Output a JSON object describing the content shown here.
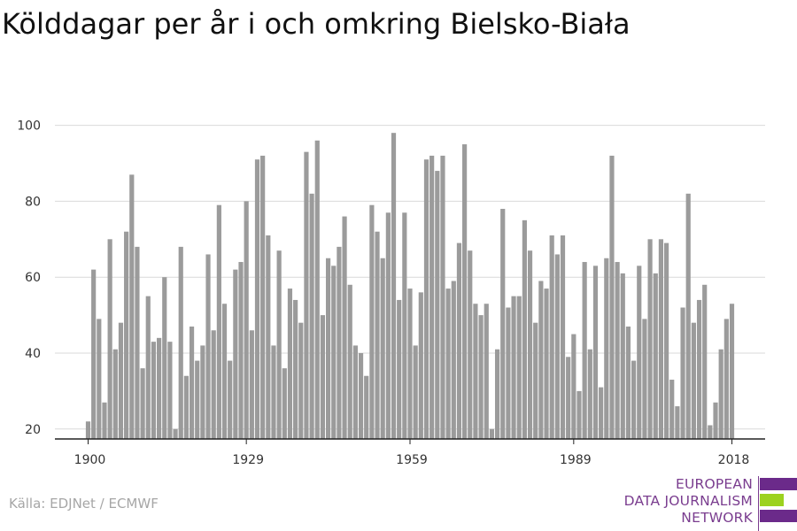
{
  "title": "Kölddagar per år i och omkring Bielsko-Biała",
  "source": "Källa: EDJNet / ECMWF",
  "logo": {
    "lines": [
      "EUROPEAN",
      "DATA JOURNALISM",
      "NETWORK"
    ],
    "colors": {
      "purple": "#6b2a8a",
      "green": "#9cd21f",
      "text": "#7a3d8f"
    }
  },
  "colors": {
    "bar": "#9b9b9b",
    "grid": "#d9d9d9",
    "axis": "#222222",
    "tick_label": "#333333"
  },
  "chart_data": {
    "type": "bar",
    "title": "Kölddagar per år i och omkring Bielsko-Biała",
    "xlabel": "",
    "ylabel": "",
    "x_range": [
      1900,
      2018
    ],
    "x_ticks": [
      1900,
      1929,
      1959,
      1989,
      2018
    ],
    "y_ticks": [
      20,
      40,
      60,
      80,
      100
    ],
    "ylim": [
      17,
      104
    ],
    "grid": "horizontal",
    "legend": "none",
    "x": [
      1900,
      1901,
      1902,
      1903,
      1904,
      1905,
      1906,
      1907,
      1908,
      1909,
      1910,
      1911,
      1912,
      1913,
      1914,
      1915,
      1916,
      1917,
      1918,
      1919,
      1920,
      1921,
      1922,
      1923,
      1924,
      1925,
      1926,
      1927,
      1928,
      1929,
      1930,
      1931,
      1932,
      1933,
      1934,
      1935,
      1936,
      1937,
      1938,
      1939,
      1940,
      1941,
      1942,
      1943,
      1944,
      1945,
      1946,
      1947,
      1948,
      1949,
      1950,
      1951,
      1952,
      1953,
      1954,
      1955,
      1956,
      1957,
      1958,
      1959,
      1960,
      1961,
      1962,
      1963,
      1964,
      1965,
      1966,
      1967,
      1968,
      1969,
      1970,
      1971,
      1972,
      1973,
      1974,
      1975,
      1976,
      1977,
      1978,
      1979,
      1980,
      1981,
      1982,
      1983,
      1984,
      1985,
      1986,
      1987,
      1988,
      1989,
      1990,
      1991,
      1992,
      1993,
      1994,
      1995,
      1996,
      1997,
      1998,
      1999,
      2000,
      2001,
      2002,
      2003,
      2004,
      2005,
      2006,
      2007,
      2008,
      2009,
      2010,
      2011,
      2012,
      2013,
      2014,
      2015,
      2016,
      2017,
      2018
    ],
    "values": [
      22,
      62,
      49,
      27,
      70,
      41,
      48,
      72,
      87,
      68,
      36,
      55,
      43,
      44,
      60,
      43,
      20,
      68,
      34,
      47,
      38,
      42,
      66,
      46,
      79,
      53,
      38,
      62,
      64,
      80,
      46,
      91,
      92,
      71,
      42,
      67,
      36,
      57,
      54,
      48,
      93,
      82,
      96,
      50,
      65,
      63,
      68,
      76,
      58,
      42,
      40,
      34,
      79,
      72,
      65,
      77,
      98,
      54,
      77,
      57,
      42,
      56,
      91,
      92,
      88,
      92,
      57,
      59,
      69,
      95,
      67,
      53,
      50,
      53,
      20,
      41,
      78,
      52,
      55,
      55,
      75,
      67,
      48,
      59,
      57,
      71,
      66,
      71,
      39,
      45,
      30,
      64,
      41,
      63,
      31,
      65,
      92,
      64,
      61,
      47,
      38,
      63,
      49,
      70,
      61,
      70,
      69,
      33,
      26,
      52,
      82,
      48,
      54,
      58,
      21,
      27,
      41,
      49,
      53
    ]
  }
}
